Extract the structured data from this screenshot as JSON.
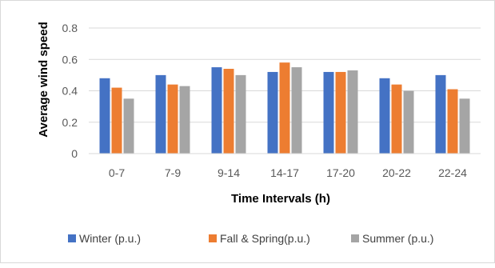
{
  "chart_data": {
    "type": "bar",
    "title": "",
    "xlabel": "Time Intervals (h)",
    "ylabel": "Average wind speed",
    "ylim": [
      0,
      0.8
    ],
    "yticks": [
      "0",
      "0.2",
      "0.4",
      "0.6",
      "0.8"
    ],
    "categories": [
      "0-7",
      "7-9",
      "9-14",
      "14-17",
      "17-20",
      "20-22",
      "22-24"
    ],
    "series": [
      {
        "name": "Winter (p.u.)",
        "color": "#4472c4",
        "values": [
          0.48,
          0.5,
          0.55,
          0.52,
          0.52,
          0.48,
          0.5
        ]
      },
      {
        "name": "Fall & Spring(p.u.)",
        "color": "#ed7d31",
        "values": [
          0.42,
          0.44,
          0.54,
          0.58,
          0.52,
          0.44,
          0.41
        ]
      },
      {
        "name": "Summer (p.u.)",
        "color": "#a5a5a5",
        "values": [
          0.35,
          0.43,
          0.5,
          0.55,
          0.53,
          0.4,
          0.35
        ]
      }
    ],
    "grid": true,
    "legend_position": "bottom"
  }
}
